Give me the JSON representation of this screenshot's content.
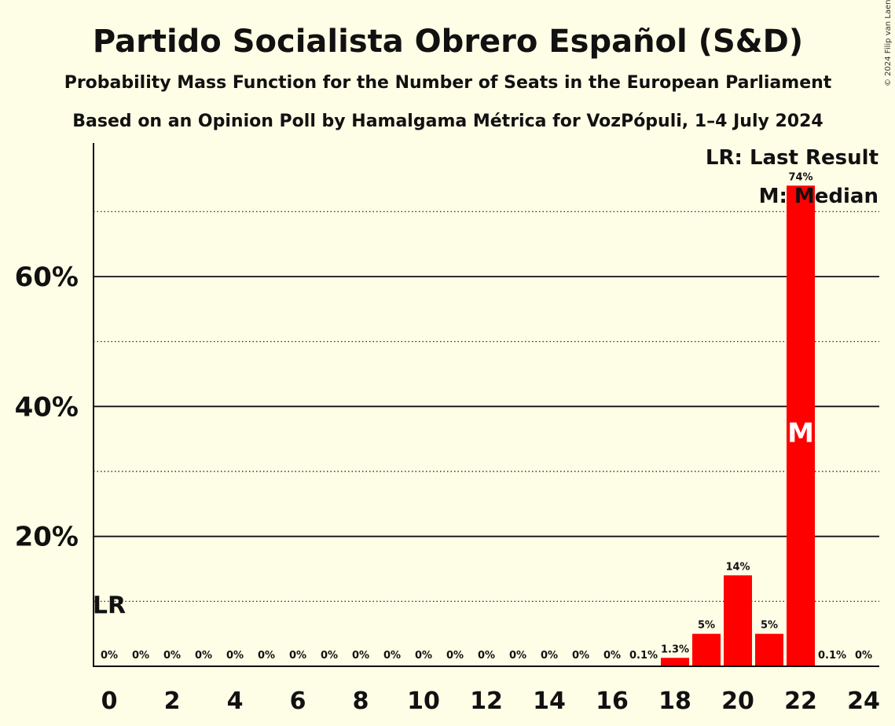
{
  "chart_data": {
    "type": "bar",
    "title": "Partido Socialista Obrero Español (S&D)",
    "subtitle": "Probability Mass Function for the Number of Seats in the European Parliament",
    "subtitle2": "Based on an Opinion Poll by Hamalgama Métrica for VozPópuli, 1–4 July 2024",
    "copyright": "© 2024 Filip van Laenen",
    "legend": {
      "lr": "LR: Last Result",
      "median": "M: Median",
      "placement": "top-right"
    },
    "x": [
      0,
      1,
      2,
      3,
      4,
      5,
      6,
      7,
      8,
      9,
      10,
      11,
      12,
      13,
      14,
      15,
      16,
      17,
      18,
      19,
      20,
      21,
      22,
      23,
      24
    ],
    "values": [
      0,
      0,
      0,
      0,
      0,
      0,
      0,
      0,
      0,
      0,
      0,
      0,
      0,
      0,
      0,
      0,
      0,
      0.1,
      1.3,
      5,
      14,
      5,
      74,
      0.1,
      0
    ],
    "labels": [
      "0%",
      "0%",
      "0%",
      "0%",
      "0%",
      "0%",
      "0%",
      "0%",
      "0%",
      "0%",
      "0%",
      "0%",
      "0%",
      "0%",
      "0%",
      "0%",
      "0%",
      "0.1%",
      "1.3%",
      "5%",
      "14%",
      "5%",
      "74%",
      "0.1%",
      "0%"
    ],
    "x_tick_labels": [
      "0",
      "2",
      "4",
      "6",
      "8",
      "10",
      "12",
      "14",
      "16",
      "18",
      "20",
      "22",
      "24"
    ],
    "x_tick_values": [
      0,
      2,
      4,
      6,
      8,
      10,
      12,
      14,
      16,
      18,
      20,
      22,
      24
    ],
    "y_ticks": [
      {
        "value": 20,
        "label": "20%"
      },
      {
        "value": 40,
        "label": "40%"
      },
      {
        "value": 60,
        "label": "60%"
      }
    ],
    "y_minor_ticks": [
      10,
      30,
      50,
      70
    ],
    "ylim": [
      0,
      80
    ],
    "last_result": {
      "x": 0,
      "value": 10,
      "label": "LR"
    },
    "median": {
      "x": 22,
      "value": 36,
      "label": "M"
    },
    "grid": true,
    "colors": {
      "bar": "#ff0000",
      "background": "#fefde6",
      "axis": "#111111"
    }
  }
}
